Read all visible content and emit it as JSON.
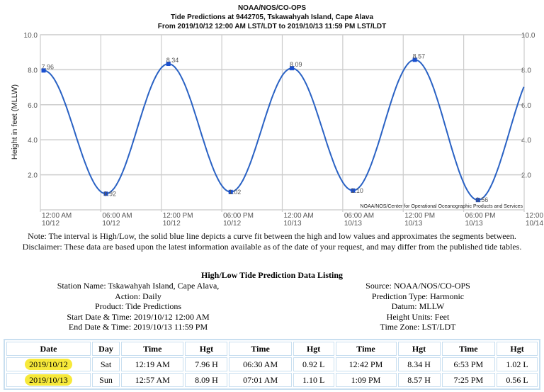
{
  "chart_data": {
    "type": "line",
    "title": [
      "NOAA/NOS/CO-OPS",
      "Tide Predictions at 9442705, Tskawahyah Island, Cape Alava",
      "From 2019/10/12 12:00 AM LST/LDT to 2019/10/13 11:59 PM LST/LDT"
    ],
    "ylabel": "Height in feet (MLLW)",
    "ylim": [
      0,
      10
    ],
    "yticks": [
      "2.0",
      "4.0",
      "6.0",
      "8.0",
      "10.0"
    ],
    "xlim": [
      "2019-10-12 00:00",
      "2019-10-14 00:00"
    ],
    "xticks": [
      [
        "12:00 AM",
        "10/12"
      ],
      [
        "06:00 AM",
        "10/12"
      ],
      [
        "12:00 PM",
        "10/12"
      ],
      [
        "06:00 PM",
        "10/12"
      ],
      [
        "12:00 AM",
        "10/13"
      ],
      [
        "06:00 AM",
        "10/13"
      ],
      [
        "12:00 PM",
        "10/13"
      ],
      [
        "06:00 PM",
        "10/13"
      ],
      [
        "12:00",
        "10/14"
      ]
    ],
    "points": [
      {
        "t": "2019-10-12 00:19",
        "v": 7.96,
        "label": "7.96"
      },
      {
        "t": "2019-10-12 06:30",
        "v": 0.92,
        "label": "0.92"
      },
      {
        "t": "2019-10-12 12:42",
        "v": 8.34,
        "label": "8.34"
      },
      {
        "t": "2019-10-12 18:53",
        "v": 1.02,
        "label": "1.02"
      },
      {
        "t": "2019-10-13 00:57",
        "v": 8.09,
        "label": "8.09"
      },
      {
        "t": "2019-10-13 07:01",
        "v": 1.1,
        "label": "1.10"
      },
      {
        "t": "2019-10-13 13:09",
        "v": 8.57,
        "label": "8.57"
      },
      {
        "t": "2019-10-13 19:25",
        "v": 0.56,
        "label": "0.56"
      }
    ],
    "grid": true,
    "line_color": "#2a62c4",
    "credit": "NOAA/NOS/Center for Operational Oceanographic Products and Services"
  },
  "notes": {
    "note": "Note: The interval is High/Low, the solid blue line depicts a curve fit between the high and low values and approximates the segments between.",
    "disclaimer": "Disclaimer: These data are based upon the latest information available as of the date of your request, and may differ from the published tide tables."
  },
  "listing": {
    "title": "High/Low Tide Prediction Data Listing",
    "left": [
      "Station Name: Tskawahyah Island, Cape Alava,",
      "Action: Daily",
      "Product: Tide Predictions",
      "Start Date & Time: 2019/10/12 12:00 AM",
      "End Date & Time: 2019/10/13 11:59 PM"
    ],
    "right": [
      "Source: NOAA/NOS/CO-OPS",
      "Prediction Type: Harmonic",
      "Datum: MLLW",
      "Height Units: Feet",
      "Time Zone: LST/LDT"
    ],
    "headers": [
      "Date",
      "Day",
      "Time",
      "Hgt",
      "Time",
      "Hgt",
      "Time",
      "Hgt",
      "Time",
      "Hgt"
    ],
    "rows": [
      [
        "2019/10/12",
        "Sat",
        "12:19 AM",
        "7.96 H",
        "06:30 AM",
        "0.92 L",
        "12:42 PM",
        "8.34 H",
        "6:53 PM",
        "1.02 L"
      ],
      [
        "2019/10/13",
        "Sun",
        "12:57 AM",
        "8.09 H",
        "07:01 AM",
        "1.10 L",
        "1:09 PM",
        "8.57 H",
        "7:25 PM",
        "0.56 L"
      ]
    ],
    "highlight_color": "#f7e93a"
  }
}
